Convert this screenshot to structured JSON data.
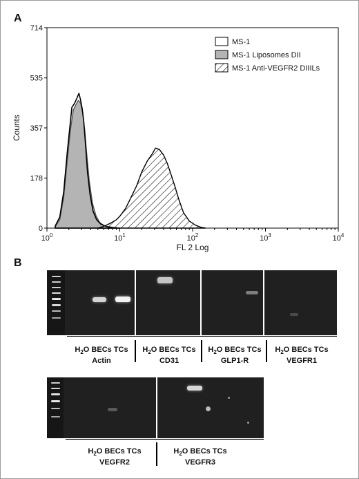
{
  "panel_a": {
    "letter": "A"
  },
  "panel_b": {
    "letter": "B"
  },
  "chart_data": {
    "type": "area",
    "xlabel": "FL 2 Log",
    "ylabel": "Counts",
    "xscale": "log",
    "xlim": [
      1,
      10000
    ],
    "ylim": [
      0,
      714
    ],
    "x_ticks": [
      1,
      10,
      100,
      1000,
      10000
    ],
    "x_tick_labels": [
      {
        "base": "10",
        "exp": "0"
      },
      {
        "base": "10",
        "exp": "1"
      },
      {
        "base": "10",
        "exp": "2"
      },
      {
        "base": "10",
        "exp": "3"
      },
      {
        "base": "10",
        "exp": "4"
      }
    ],
    "y_ticks": [
      0,
      178,
      357,
      535,
      714
    ],
    "y_tick_labels": [
      "0",
      "178",
      "357",
      "535",
      "714"
    ],
    "legend_position": "top-right",
    "series": [
      {
        "name": "MS-1",
        "style": "open",
        "x": [
          1.3,
          1.5,
          1.7,
          1.9,
          2.1,
          2.2,
          2.4,
          2.6,
          2.75,
          2.9,
          3.05,
          3.2,
          3.4,
          3.6,
          3.9,
          4.3,
          4.8,
          5.5,
          6.5,
          8,
          10
        ],
        "y": [
          8,
          40,
          130,
          270,
          380,
          430,
          445,
          465,
          480,
          455,
          425,
          380,
          290,
          200,
          120,
          60,
          30,
          14,
          6,
          2,
          0
        ]
      },
      {
        "name": "MS-1 Liposomes DII",
        "style": "filled",
        "color": "#b4b4b4",
        "x": [
          1.3,
          1.5,
          1.7,
          1.9,
          2.1,
          2.3,
          2.5,
          2.7,
          2.9,
          3.1,
          3.3,
          3.5,
          3.8,
          4.2,
          4.7,
          5.3,
          6.2,
          7.5,
          9
        ],
        "y": [
          5,
          30,
          110,
          240,
          350,
          420,
          440,
          455,
          445,
          410,
          350,
          270,
          170,
          90,
          45,
          20,
          8,
          3,
          0
        ]
      },
      {
        "name": "MS-1 Anti-VEGFR2 DIIILs",
        "style": "hatched",
        "x": [
          5,
          6,
          7,
          8,
          9,
          10,
          12,
          14,
          17,
          20,
          24,
          28,
          31,
          35,
          40,
          45,
          50,
          57,
          65,
          75,
          90,
          110,
          130,
          150
        ],
        "y": [
          0,
          6,
          14,
          22,
          30,
          42,
          70,
          105,
          150,
          200,
          240,
          265,
          285,
          280,
          260,
          230,
          195,
          150,
          100,
          55,
          25,
          10,
          3,
          0
        ]
      }
    ]
  },
  "gel_1": {
    "groups": [
      {
        "solvent": "H",
        "sub": "2",
        "suffix": "O BECs TCs",
        "target": "Actin"
      },
      {
        "solvent": "H",
        "sub": "2",
        "suffix": "O BECs TCs",
        "target": "CD31"
      },
      {
        "solvent": "H",
        "sub": "2",
        "suffix": "O BECs TCs",
        "target": "GLP1-R"
      },
      {
        "solvent": "H",
        "sub": "2",
        "suffix": "O BECs TCs",
        "target": "VEGFR1"
      }
    ]
  },
  "gel_2": {
    "groups": [
      {
        "solvent": "H",
        "sub": "2",
        "suffix": "O BECs TCs",
        "target": "VEGFR2"
      },
      {
        "solvent": "H",
        "sub": "2",
        "suffix": "O BECs TCs",
        "target": "VEGFR3"
      }
    ]
  }
}
